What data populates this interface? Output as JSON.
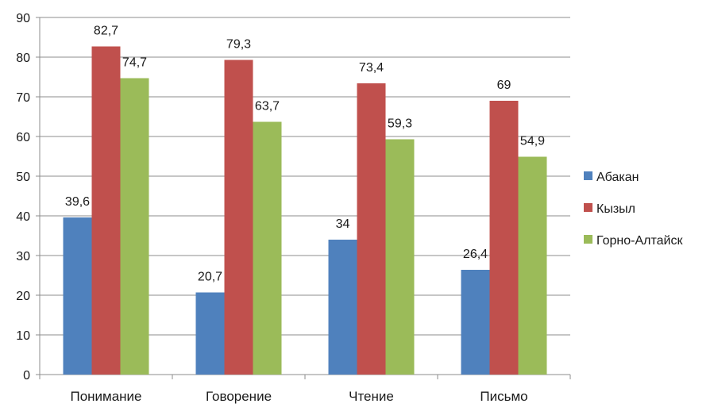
{
  "chart_data": {
    "type": "bar",
    "categories": [
      "Понимание",
      "Говорение",
      "Чтение",
      "Письмо"
    ],
    "series": [
      {
        "name": "Абакан",
        "color": "#4F81BD",
        "values": [
          39.6,
          20.7,
          34,
          26.4
        ],
        "labels": [
          "39,6",
          "20,7",
          "34",
          "26,4"
        ]
      },
      {
        "name": "Кызыл",
        "color": "#C0504D",
        "values": [
          82.7,
          79.3,
          73.4,
          69
        ],
        "labels": [
          "82,7",
          "79,3",
          "73,4",
          "69"
        ]
      },
      {
        "name": "Горно-Алтайск",
        "color": "#9BBB59",
        "values": [
          74.7,
          63.7,
          59.3,
          54.9
        ],
        "labels": [
          "74,7",
          "63,7",
          "59,3",
          "54,9"
        ]
      }
    ],
    "ylim": [
      0,
      90
    ],
    "yticks": [
      0,
      10,
      20,
      30,
      40,
      50,
      60,
      70,
      80,
      90
    ],
    "grid": true,
    "legend": "right"
  }
}
